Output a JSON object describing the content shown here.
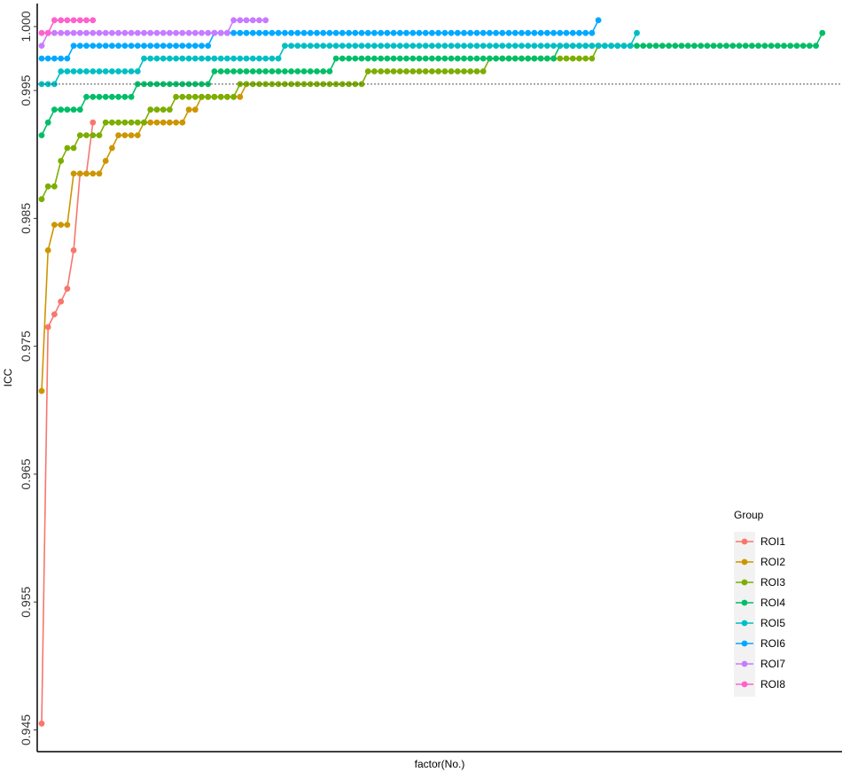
{
  "chart_data": {
    "type": "line",
    "xlabel": "factor(No.)",
    "ylabel": "ICC",
    "ylim": [
      0.9433,
      1.0018
    ],
    "yticks": [
      0.945,
      0.955,
      0.965,
      0.975,
      0.985,
      0.995,
      1.0
    ],
    "ytick_labels": [
      "0.945",
      "0.955",
      "0.965",
      "0.975",
      "0.985",
      "0.995",
      "1.000"
    ],
    "reference_line": 0.9955,
    "grid": false,
    "legend": {
      "title": "Group",
      "position": "bottom-right"
    },
    "x_count": 126,
    "series": [
      {
        "name": "ROI1",
        "color": "#F8766D",
        "runs": [
          [
            1,
            0.9455
          ],
          [
            2,
            0.9765
          ],
          [
            3,
            0.9775
          ],
          [
            4,
            0.9785
          ],
          [
            5,
            0.9795
          ],
          [
            6,
            0.9825
          ],
          [
            7,
            0.9885
          ],
          [
            9,
            0.9925
          ]
        ]
      },
      {
        "name": "ROI2",
        "color": "#CD9600",
        "runs": [
          [
            1,
            0.9715
          ],
          [
            2,
            0.9825
          ],
          [
            3,
            0.9845
          ],
          [
            6,
            0.9885
          ],
          [
            11,
            0.9895
          ],
          [
            12,
            0.9905
          ],
          [
            13,
            0.9915
          ],
          [
            17,
            0.9925
          ],
          [
            24,
            0.9935
          ],
          [
            26,
            0.9945
          ],
          [
            33,
            0.9955
          ]
        ]
      },
      {
        "name": "ROI3",
        "color": "#7CAE00",
        "runs": [
          [
            1,
            0.9865
          ],
          [
            2,
            0.9875
          ],
          [
            4,
            0.9895
          ],
          [
            5,
            0.9905
          ],
          [
            7,
            0.9915
          ],
          [
            11,
            0.9925
          ],
          [
            18,
            0.9935
          ],
          [
            22,
            0.9945
          ],
          [
            32,
            0.9955
          ],
          [
            52,
            0.9965
          ],
          [
            71,
            0.9975
          ],
          [
            88,
            0.9985
          ]
        ]
      },
      {
        "name": "ROI4",
        "color": "#00BE67",
        "runs": [
          [
            1,
            0.9915
          ],
          [
            2,
            0.9925
          ],
          [
            3,
            0.9935
          ],
          [
            8,
            0.9945
          ],
          [
            16,
            0.9955
          ],
          [
            28,
            0.9965
          ],
          [
            47,
            0.9975
          ],
          [
            82,
            0.9985
          ],
          [
            123,
            0.9995
          ]
        ]
      },
      {
        "name": "ROI5",
        "color": "#00BFC4",
        "runs": [
          [
            1,
            0.9955
          ],
          [
            4,
            0.9965
          ],
          [
            17,
            0.9975
          ],
          [
            39,
            0.9985
          ],
          [
            94,
            0.9995
          ]
        ]
      },
      {
        "name": "ROI6",
        "color": "#00A9FF",
        "runs": [
          [
            1,
            0.9975
          ],
          [
            6,
            0.9985
          ],
          [
            28,
            0.9995
          ],
          [
            88,
            1.0005
          ]
        ]
      },
      {
        "name": "ROI7",
        "color": "#C77CFF",
        "runs": [
          [
            1,
            0.9985
          ],
          [
            2,
            0.9995
          ],
          [
            31,
            1.0005
          ],
          [
            36,
            1.0005
          ]
        ]
      },
      {
        "name": "ROI8",
        "color": "#FF61CC",
        "runs": [
          [
            1,
            0.9995
          ],
          [
            3,
            1.0005
          ],
          [
            9,
            1.0005
          ]
        ]
      }
    ]
  }
}
